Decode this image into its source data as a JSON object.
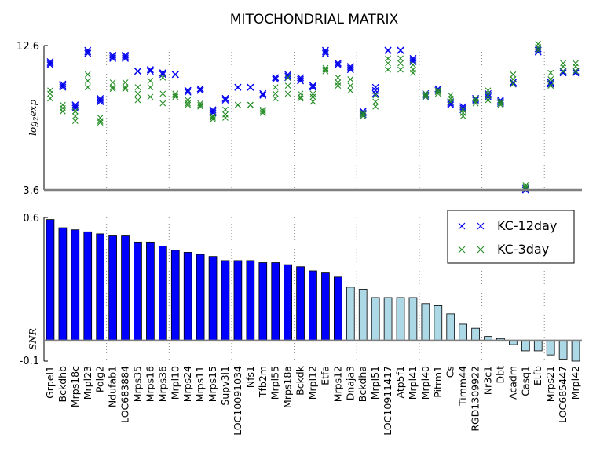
{
  "chart_data": {
    "type": "bar",
    "title": "MITOCHONDRIAL MATRIX",
    "colors": {
      "kc12": "#0000ee",
      "kc3": "#228b22",
      "bar_sig": "#0000ff",
      "bar_nonsig": "#add8e6",
      "axis": "#808080",
      "grid": "#888888"
    },
    "top_panel": {
      "ylabel": "log2exp",
      "ylabel_main": "log",
      "ylabel_sub": "2",
      "ylabel_rest": "exp",
      "ylim": [
        3.6,
        12.6
      ],
      "ytick_labels": [
        "12.6",
        "3.6"
      ],
      "grid": "vertical dotted group separators"
    },
    "bottom_panel": {
      "ylabel": "SNR",
      "ylim": [
        -0.1,
        0.6
      ],
      "ytick_labels": [
        "0.6",
        "-0.1"
      ]
    },
    "legend": {
      "placement": "top-right of lower panel",
      "entries": [
        {
          "label": "KC-12day",
          "color": "#0000ee"
        },
        {
          "label": "KC-3day",
          "color": "#228b22"
        }
      ]
    },
    "categories": [
      "Grpel1",
      "Bckdhb",
      "Mrps18c",
      "Mrpl23",
      "Polg2",
      "Ndufab1",
      "LOC683884",
      "Mrps35",
      "Mrps16",
      "Mrps36",
      "Mrpl10",
      "Mrps24",
      "Mrps11",
      "Mrps15",
      "Supv3l1",
      "LOC10091034",
      "Nfs1",
      "Tfb2m",
      "Mrpl55",
      "Mrps18a",
      "Bckdk",
      "Mrpl12",
      "Etfa",
      "Mrps12",
      "Dnaja3",
      "Bckdha",
      "Mrpl51",
      "LOC10911417",
      "Atp5f1",
      "Mrpl41",
      "Mrpl40",
      "Pitrm1",
      "Cs",
      "Timm44",
      "RGD1309922",
      "Nr3c1",
      "Dbt",
      "Acadm",
      "Casq1",
      "Etfb",
      "Mrps21",
      "LOC685447",
      "Mrpl42"
    ],
    "snr_values": [
      0.59,
      0.55,
      0.54,
      0.53,
      0.52,
      0.51,
      0.51,
      0.48,
      0.48,
      0.46,
      0.44,
      0.43,
      0.42,
      0.41,
      0.39,
      0.39,
      0.39,
      0.38,
      0.38,
      0.37,
      0.36,
      0.34,
      0.33,
      0.31,
      0.26,
      0.25,
      0.21,
      0.21,
      0.21,
      0.21,
      0.18,
      0.17,
      0.13,
      0.08,
      0.06,
      0.02,
      0.01,
      -0.02,
      -0.05,
      -0.05,
      -0.07,
      -0.09,
      -0.1
    ],
    "significant_count": 24,
    "series": [
      {
        "name": "KC-12day",
        "values": [
          [
            11.6,
            11.4,
            11.5
          ],
          [
            10.2,
            10.0,
            10.1
          ],
          [
            8.9,
            8.7,
            8.8
          ],
          [
            12.3,
            12.1,
            12.2
          ],
          [
            9.3,
            9.1,
            9.2
          ],
          [
            12.0,
            11.8,
            11.9
          ],
          [
            12.0,
            11.8,
            11.9
          ],
          [
            11.0,
            11.0,
            11.0
          ],
          [
            11.1,
            11.0,
            11.1
          ],
          [
            10.9,
            10.8,
            10.9
          ],
          [
            10.8,
            10.8,
            10.8
          ],
          [
            9.8,
            9.7,
            9.8
          ],
          [
            9.9,
            9.8,
            9.9
          ],
          [
            8.6,
            8.4,
            8.5
          ],
          [
            9.3,
            9.2,
            9.3
          ],
          [
            10.0,
            10.0,
            10.0
          ],
          [
            10.0,
            10.0,
            10.0
          ],
          [
            9.6,
            9.5,
            9.6
          ],
          [
            10.6,
            10.5,
            10.6
          ],
          [
            10.8,
            10.6,
            10.7
          ],
          [
            10.6,
            10.4,
            10.5
          ],
          [
            10.1,
            10.0,
            10.1
          ],
          [
            12.3,
            12.1,
            12.2
          ],
          [
            11.5,
            11.4,
            11.5
          ],
          [
            11.3,
            11.1,
            11.2
          ],
          [
            8.5,
            8.3,
            8.4
          ],
          [
            10.0,
            9.8,
            9.6
          ],
          [
            12.3,
            12.3,
            12.3
          ],
          [
            12.3,
            12.3,
            12.3
          ],
          [
            11.8,
            11.6,
            11.7
          ],
          [
            9.6,
            9.4,
            9.5
          ],
          [
            9.9,
            9.8,
            9.9
          ],
          [
            9.1,
            8.9,
            9.0
          ],
          [
            8.8,
            8.6,
            8.7
          ],
          [
            9.3,
            9.2,
            9.3
          ],
          [
            9.6,
            9.4,
            9.5
          ],
          [
            9.2,
            9.0,
            9.1
          ],
          [
            10.3,
            10.2,
            10.3
          ],
          [
            3.7,
            3.6,
            3.6
          ],
          [
            12.4,
            12.2,
            12.3
          ],
          [
            10.3,
            10.2,
            10.3
          ],
          [
            11.0,
            10.9,
            11.0
          ],
          [
            11.0,
            10.9,
            11.0
          ]
        ]
      },
      {
        "name": "KC-3day",
        "values": [
          [
            9.8,
            9.6,
            9.3
          ],
          [
            8.9,
            8.7,
            8.5
          ],
          [
            8.5,
            8.2,
            7.9
          ],
          [
            10.8,
            10.4,
            10.0
          ],
          [
            8.1,
            7.9,
            7.8
          ],
          [
            10.3,
            10.0,
            9.9
          ],
          [
            10.3,
            10.0,
            9.9
          ],
          [
            10.0,
            9.6,
            9.2
          ],
          [
            10.4,
            10.0,
            9.4
          ],
          [
            10.6,
            9.6,
            9.0
          ],
          [
            9.6,
            9.5,
            9.4
          ],
          [
            9.2,
            9.0,
            8.9
          ],
          [
            9.0,
            8.9,
            8.8
          ],
          [
            8.2,
            8.1,
            8.0
          ],
          [
            8.6,
            8.3,
            8.1
          ],
          [
            8.9,
            8.9,
            8.9
          ],
          [
            8.9,
            8.9,
            8.9
          ],
          [
            8.6,
            8.5,
            8.4
          ],
          [
            10.0,
            9.6,
            9.3
          ],
          [
            10.6,
            10.1,
            9.6
          ],
          [
            9.6,
            9.4,
            9.3
          ],
          [
            9.6,
            9.4,
            9.1
          ],
          [
            11.2,
            11.1,
            11.0
          ],
          [
            10.6,
            10.3,
            10.1
          ],
          [
            10.5,
            10.1,
            9.8
          ],
          [
            8.4,
            8.3,
            8.2
          ],
          [
            9.5,
            9.1,
            8.8
          ],
          [
            11.8,
            11.5,
            11.1
          ],
          [
            11.8,
            11.5,
            11.1
          ],
          [
            11.4,
            11.1,
            10.9
          ],
          [
            9.6,
            9.5,
            9.4
          ],
          [
            9.8,
            9.7,
            9.6
          ],
          [
            9.5,
            9.3,
            9.1
          ],
          [
            8.6,
            8.4,
            8.2
          ],
          [
            9.3,
            9.1,
            9.0
          ],
          [
            9.8,
            9.5,
            9.2
          ],
          [
            9.1,
            9.0,
            8.9
          ],
          [
            10.8,
            10.5,
            10.2
          ],
          [
            3.9,
            3.8,
            3.7
          ],
          [
            12.7,
            12.5,
            12.3
          ],
          [
            10.9,
            10.5,
            10.1
          ],
          [
            11.5,
            11.3,
            11.0
          ],
          [
            11.5,
            11.3,
            11.0
          ]
        ]
      }
    ]
  }
}
